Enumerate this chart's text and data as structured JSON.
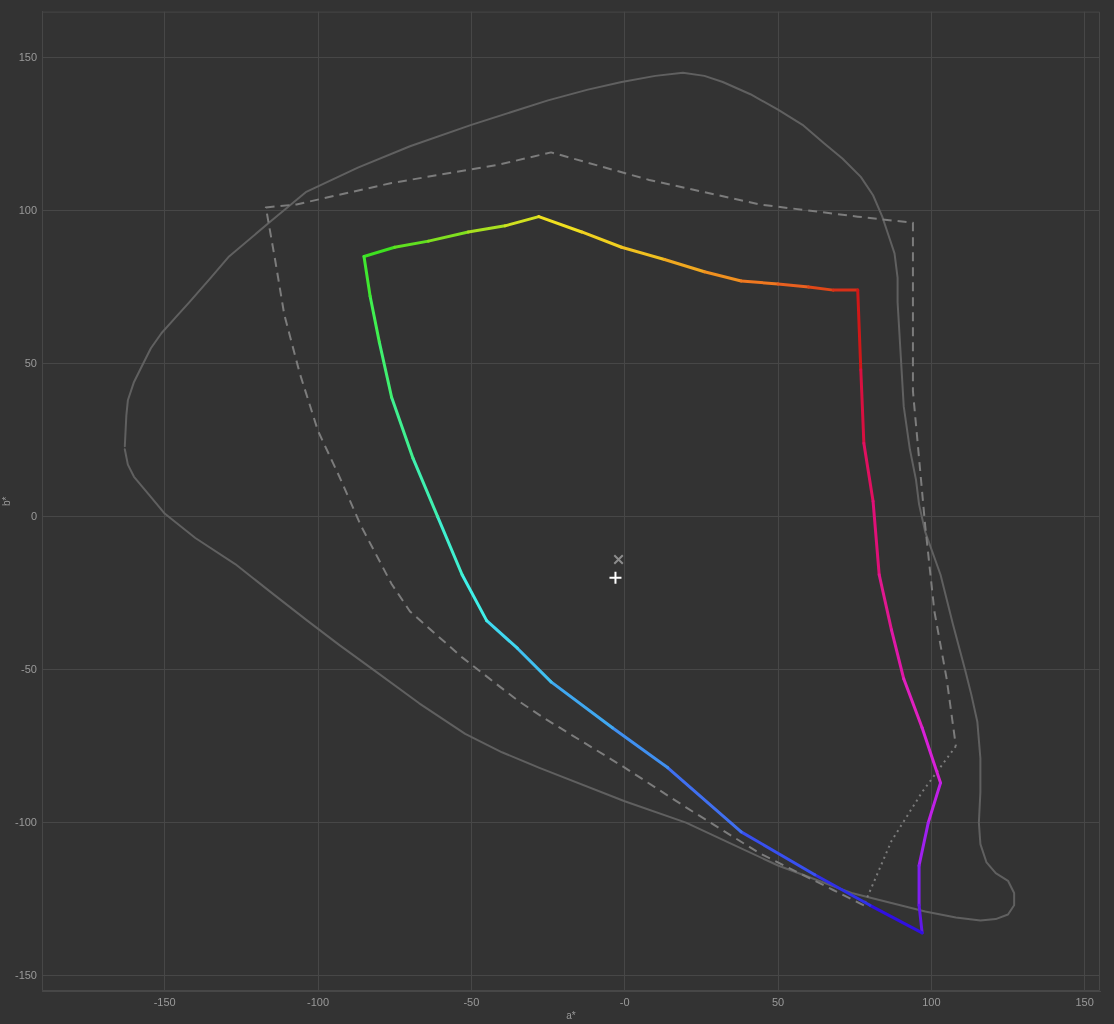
{
  "chart_data": {
    "type": "line",
    "xlabel": "a*",
    "ylabel": "b*",
    "xlim": [
      -190,
      155
    ],
    "ylim": [
      -155,
      165
    ],
    "xticks": [
      -150,
      -100,
      -50,
      {
        "value": 0,
        "label": "-0"
      },
      50,
      100,
      150
    ],
    "yticks": [
      -150,
      -100,
      -50,
      0,
      50,
      100,
      150
    ],
    "grid": true,
    "series": [
      {
        "color": "#606060",
        "line_style": "solid",
        "marker": "none",
        "x": [
          -163,
          -162.5,
          -162,
          -160,
          -157,
          -154.5,
          -151,
          -146.5,
          -142,
          -135,
          -129,
          -116,
          -104,
          -87,
          -70,
          -50,
          -25,
          -12,
          -1,
          10,
          19,
          26,
          32,
          41,
          50,
          58,
          65,
          71,
          77,
          81,
          84,
          86,
          88,
          89,
          89,
          90,
          91,
          93,
          95,
          96,
          98,
          103,
          107,
          111,
          113,
          115,
          116,
          116,
          115.5,
          116,
          118,
          121,
          125,
          127,
          127,
          125,
          121,
          116,
          108,
          98,
          74,
          50,
          35,
          20,
          0,
          -28,
          -40,
          -52,
          -67,
          -82,
          -93,
          -103.5,
          -115,
          -127,
          -140,
          -150,
          -155,
          -160,
          -162,
          -163
        ],
        "values": [
          23,
          33,
          38,
          44,
          50,
          55,
          60,
          65,
          70,
          78,
          85,
          96,
          106,
          114,
          121,
          128,
          136,
          139.5,
          142,
          144,
          145,
          144,
          142,
          138,
          133,
          128,
          122,
          117,
          111,
          105,
          98,
          92,
          86,
          78,
          70,
          53,
          36,
          22,
          12,
          4,
          -5,
          -19,
          -35,
          -50,
          -58,
          -67,
          -79,
          -90,
          -100,
          -107,
          -113,
          -116.5,
          -119,
          -123,
          -127,
          -130,
          -131.5,
          -132,
          -131,
          -129,
          -123,
          -114,
          -107,
          -100,
          -93,
          -82,
          -77,
          -71,
          -61,
          -50,
          -42,
          -34,
          -25,
          -15.5,
          -7,
          1,
          7,
          13,
          17,
          22
        ]
      },
      {
        "color": "#7c7c7c",
        "line_style": "dashed",
        "marker": "none",
        "x": [
          78,
          68,
          44,
          20,
          0,
          -26,
          -35,
          -53,
          -70,
          -76,
          -86,
          -93,
          -100,
          -106,
          -111,
          -114,
          -117,
          -107,
          -76,
          -41,
          -24,
          8,
          44,
          76,
          94,
          94,
          98,
          101,
          105,
          108
        ],
        "values": [
          -127,
          -122,
          -110,
          -95,
          -82,
          -66,
          -60,
          -46,
          -31,
          -22,
          -3,
          13,
          28,
          47,
          66,
          84,
          101,
          102,
          109,
          115,
          119,
          110,
          102,
          98,
          96,
          41,
          -3,
          -31,
          -53,
          -75
        ]
      },
      {
        "color": "#7c7c7c",
        "line_style": "dotted",
        "marker": "none",
        "x": [
          108,
          97,
          87,
          78
        ],
        "values": [
          -75,
          -90,
          -106,
          -127
        ]
      },
      {
        "color": "#3ee020",
        "x": [
          -85,
          -75
        ],
        "values": [
          85,
          88
        ]
      },
      {
        "color": "#60e020",
        "x": [
          -75,
          -64
        ],
        "values": [
          88,
          90
        ]
      },
      {
        "color": "#80e020",
        "x": [
          -64,
          -51
        ],
        "values": [
          90,
          93
        ]
      },
      {
        "color": "#a8e020",
        "x": [
          -51,
          -39
        ],
        "values": [
          93,
          95
        ]
      },
      {
        "color": "#d0e020",
        "x": [
          -39,
          -28
        ],
        "values": [
          95,
          98
        ]
      },
      {
        "color": "#f0e020",
        "x": [
          -28,
          -14
        ],
        "values": [
          98,
          93
        ]
      },
      {
        "color": "#f0d020",
        "x": [
          -14,
          -1
        ],
        "values": [
          93,
          88
        ]
      },
      {
        "color": "#f0c020",
        "x": [
          -1,
          13
        ],
        "values": [
          88,
          84
        ]
      },
      {
        "color": "#f0a820",
        "x": [
          13,
          26
        ],
        "values": [
          84,
          80
        ]
      },
      {
        "color": "#f09020",
        "x": [
          26,
          38
        ],
        "values": [
          80,
          77
        ]
      },
      {
        "color": "#f07820",
        "x": [
          38,
          50
        ],
        "values": [
          77,
          76
        ]
      },
      {
        "color": "#e86020",
        "x": [
          50,
          60
        ],
        "values": [
          76,
          75
        ]
      },
      {
        "color": "#e04818",
        "x": [
          60,
          68
        ],
        "values": [
          75,
          74
        ]
      },
      {
        "color": "#d83018",
        "x": [
          68,
          76
        ],
        "values": [
          74,
          74
        ]
      },
      {
        "color": "#d01818",
        "x": [
          76,
          77
        ],
        "values": [
          74,
          48
        ]
      },
      {
        "color": "#d81040",
        "x": [
          77,
          78
        ],
        "values": [
          48,
          24
        ]
      },
      {
        "color": "#e01060",
        "x": [
          78,
          81
        ],
        "values": [
          24,
          5
        ]
      },
      {
        "color": "#e01078",
        "x": [
          81,
          83
        ],
        "values": [
          5,
          -19
        ]
      },
      {
        "color": "#e01890",
        "x": [
          83,
          87
        ],
        "values": [
          -19,
          -37
        ]
      },
      {
        "color": "#e018a8",
        "x": [
          87,
          91
        ],
        "values": [
          -37,
          -53
        ]
      },
      {
        "color": "#e020c0",
        "x": [
          91,
          97
        ],
        "values": [
          -53,
          -69
        ]
      },
      {
        "color": "#d820d8",
        "x": [
          97,
          103
        ],
        "values": [
          -69,
          -87
        ]
      },
      {
        "color": "#c020e8",
        "x": [
          103,
          99
        ],
        "values": [
          -87,
          -100
        ]
      },
      {
        "color": "#a020f0",
        "x": [
          99,
          96
        ],
        "values": [
          -100,
          -114
        ]
      },
      {
        "color": "#8020f0",
        "x": [
          96,
          96
        ],
        "values": [
          -114,
          -127
        ]
      },
      {
        "color": "#6018e8",
        "x": [
          96,
          97
        ],
        "values": [
          -127,
          -136
        ]
      },
      {
        "color": "#3010e0",
        "x": [
          97,
          80
        ],
        "values": [
          -136,
          -127
        ]
      },
      {
        "color": "#3030e8",
        "x": [
          80,
          62
        ],
        "values": [
          -127,
          -117
        ]
      },
      {
        "color": "#3850f0",
        "x": [
          62,
          38
        ],
        "values": [
          -117,
          -103
        ]
      },
      {
        "color": "#4070f0",
        "x": [
          38,
          14
        ],
        "values": [
          -103,
          -82
        ]
      },
      {
        "color": "#4090f0",
        "x": [
          14,
          -4
        ],
        "values": [
          -82,
          -69
        ]
      },
      {
        "color": "#40a8f0",
        "x": [
          -4,
          -24
        ],
        "values": [
          -69,
          -54
        ]
      },
      {
        "color": "#40c0f0",
        "x": [
          -24,
          -35
        ],
        "values": [
          -54,
          -43
        ]
      },
      {
        "color": "#40d8f0",
        "x": [
          -35,
          -45
        ],
        "values": [
          -43,
          -34
        ]
      },
      {
        "color": "#40f0e8",
        "x": [
          -45,
          -53
        ],
        "values": [
          -34,
          -19
        ]
      },
      {
        "color": "#40f0d0",
        "x": [
          -53,
          -61
        ],
        "values": [
          -19,
          0
        ]
      },
      {
        "color": "#40f0b0",
        "x": [
          -61,
          -69
        ],
        "values": [
          0,
          19
        ]
      },
      {
        "color": "#40f090",
        "x": [
          -69,
          -76
        ],
        "values": [
          19,
          39
        ]
      },
      {
        "color": "#40f070",
        "x": [
          -76,
          -80
        ],
        "values": [
          39,
          57
        ]
      },
      {
        "color": "#40f050",
        "x": [
          -80,
          -83
        ],
        "values": [
          57,
          72
        ]
      },
      {
        "color": "#40e830",
        "x": [
          -83,
          -85
        ],
        "values": [
          72,
          85
        ]
      },
      {
        "type": "scatter",
        "color": "#8c8c8c",
        "marker": "x",
        "x": [
          -2
        ],
        "values": [
          -14
        ]
      },
      {
        "type": "scatter",
        "color": "#ffffff",
        "marker": "cross",
        "x": [
          -3
        ],
        "values": [
          -20
        ]
      }
    ]
  }
}
